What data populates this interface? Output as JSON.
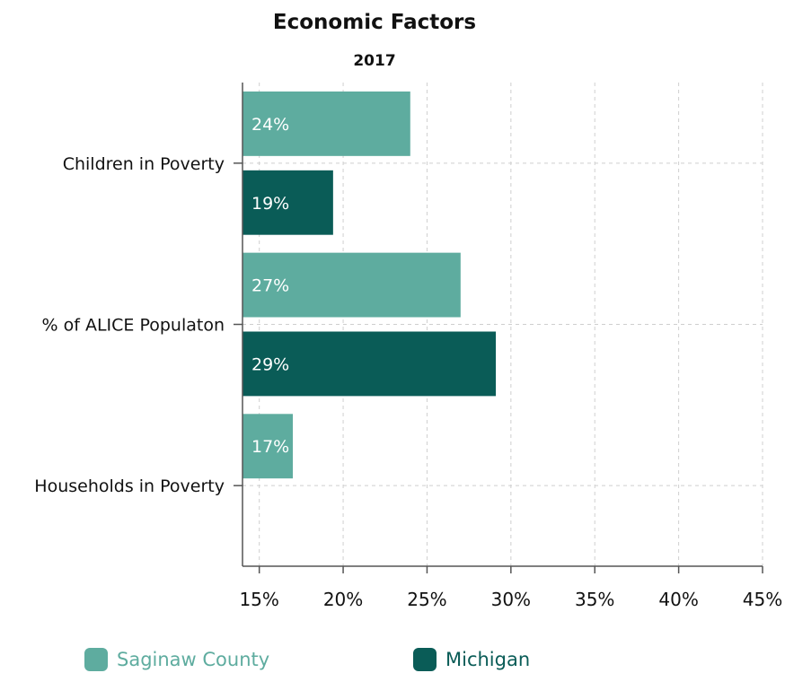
{
  "chart_data": {
    "type": "bar",
    "orientation": "horizontal",
    "title": "Economic Factors",
    "subtitle": "2017",
    "categories": [
      "Children in Poverty",
      "% of ALICE Populaton",
      "Households in Poverty"
    ],
    "series": [
      {
        "name": "Saginaw County",
        "values": [
          24,
          27,
          17
        ],
        "labels": [
          "24%",
          "27%",
          "17%"
        ],
        "color": "#5eac9f"
      },
      {
        "name": "Michigan",
        "values": [
          19.4,
          29.1,
          null
        ],
        "labels": [
          "19%",
          "29%",
          ""
        ],
        "color": "#0a5c57"
      }
    ],
    "xlim": [
      14,
      45
    ],
    "x_ticks": [
      15,
      20,
      25,
      30,
      35,
      40,
      45
    ],
    "x_tick_labels": [
      "15%",
      "20%",
      "25%",
      "30%",
      "35%",
      "40%",
      "45%"
    ],
    "grid": true,
    "legend_position": "bottom"
  }
}
